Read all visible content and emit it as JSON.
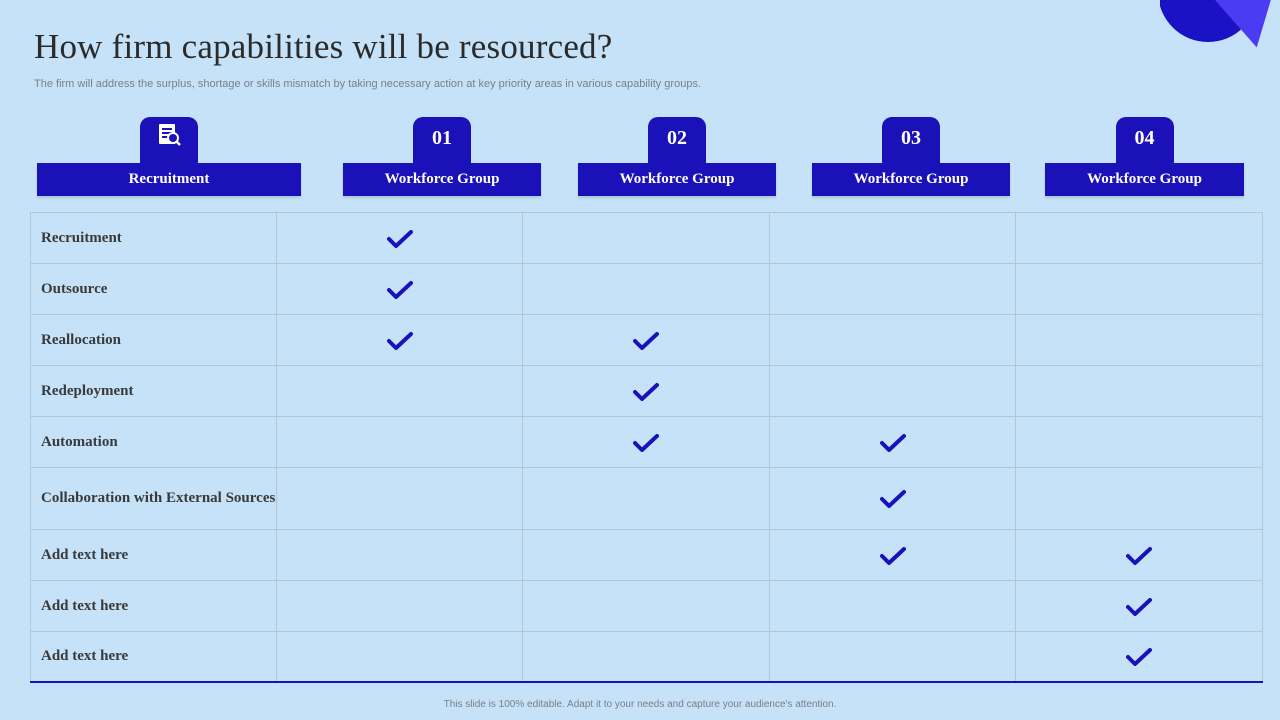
{
  "slide": {
    "title": "How firm capabilities will be resourced?",
    "subtitle": "The firm will address the surplus, shortage or skills mismatch by taking necessary action at key priority areas in various capability groups.",
    "footer": "This slide is 100% editable. Adapt it to your needs and capture your audience's attention."
  },
  "colors": {
    "background": "#c5e2f8",
    "accent": "#1a12b8",
    "check": "#1a12b8",
    "grid": "#b7c4d4"
  },
  "headers": [
    {
      "tab": "",
      "icon": "document-search-icon",
      "label": "Recruitment"
    },
    {
      "tab": "01",
      "label": "Workforce Group"
    },
    {
      "tab": "02",
      "label": "Workforce Group"
    },
    {
      "tab": "03",
      "label": "Workforce Group"
    },
    {
      "tab": "04",
      "label": "Workforce Group"
    }
  ],
  "rows": [
    {
      "label": "Recruitment",
      "checks": [
        true,
        false,
        false,
        false
      ]
    },
    {
      "label": "Outsource",
      "checks": [
        true,
        false,
        false,
        false
      ]
    },
    {
      "label": "Reallocation",
      "checks": [
        true,
        true,
        false,
        false
      ]
    },
    {
      "label": "Redeployment",
      "checks": [
        false,
        true,
        false,
        false
      ]
    },
    {
      "label": "Automation",
      "checks": [
        false,
        true,
        true,
        false
      ]
    },
    {
      "label": "Collaboration with External Sources",
      "checks": [
        false,
        false,
        true,
        false
      ]
    },
    {
      "label": "Add text here",
      "checks": [
        false,
        false,
        true,
        true
      ]
    },
    {
      "label": "Add text here",
      "checks": [
        false,
        false,
        false,
        true
      ]
    },
    {
      "label": "Add text here",
      "checks": [
        false,
        false,
        false,
        true
      ]
    }
  ]
}
